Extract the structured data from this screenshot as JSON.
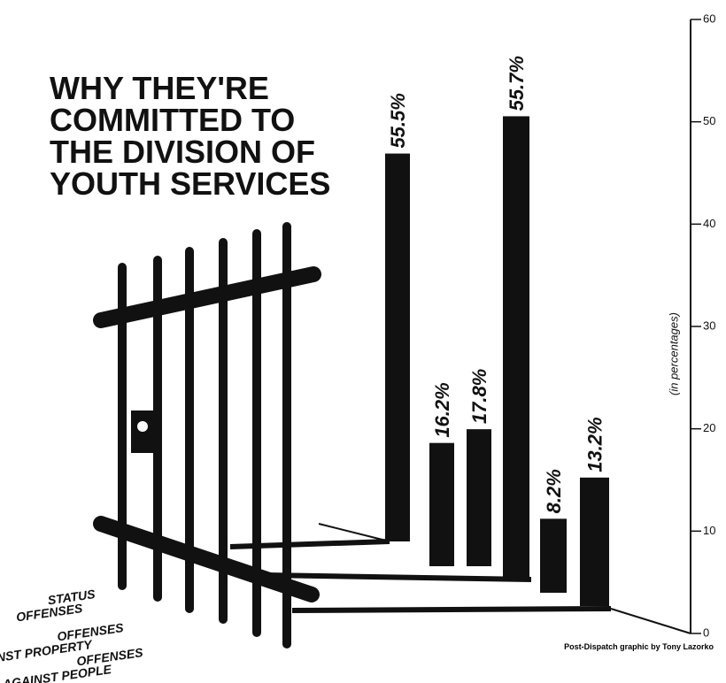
{
  "chart_data": {
    "type": "bar",
    "title_lines": [
      "WHY THEY'RE",
      "COMMITTED TO",
      "THE DIVISION OF",
      "YOUTH SERVICES"
    ],
    "row_labels": [
      [
        "STATUS",
        "OFFENSES"
      ],
      [
        "OFFENSES",
        "AGAINST PROPERTY"
      ],
      [
        "OFFENSES",
        "AGAINST PEOPLE"
      ]
    ],
    "values": [
      55.5,
      16.2,
      17.8,
      55.7,
      8.2,
      13.2
    ],
    "value_labels": [
      "55.5%",
      "16.2%",
      "17.8%",
      "55.7%",
      "8.2%",
      "13.2%"
    ],
    "color": "#111111",
    "ylim": [
      0,
      60
    ],
    "yticks": [
      0,
      10,
      20,
      30,
      40,
      50,
      60
    ],
    "y_label": "(in percentages)",
    "credit": "Post-Dispatch graphic by Tony Lazorko"
  }
}
